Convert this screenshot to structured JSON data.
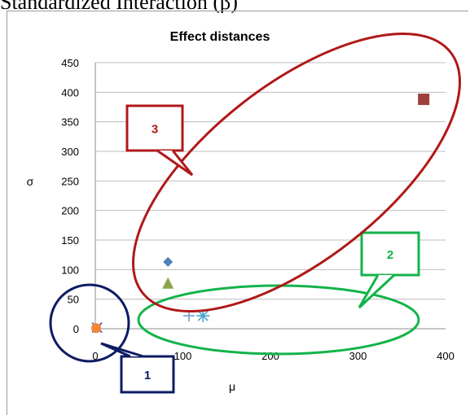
{
  "header_text": "Standardized Interaction (β)",
  "chart_data": {
    "type": "scatter",
    "title": "Effect distances",
    "xlabel": "μ",
    "ylabel": "σ",
    "xlim": [
      0,
      400
    ],
    "ylim": [
      0,
      450
    ],
    "x_ticks": [
      "0",
      "100",
      "200",
      "300",
      "400"
    ],
    "y_ticks": [
      "0",
      "50",
      "100",
      "150",
      "200",
      "250",
      "300",
      "350",
      "400",
      "450"
    ],
    "grid": true,
    "series": [
      {
        "marker": "diamond",
        "color": "#4f81bd",
        "points": [
          [
            83,
            113
          ]
        ]
      },
      {
        "marker": "square",
        "color": "#a0403c",
        "points": [
          [
            375,
            388
          ]
        ]
      },
      {
        "marker": "triangle",
        "color": "#8aa64a",
        "points": [
          [
            83,
            76
          ]
        ]
      },
      {
        "marker": "x",
        "color": "#7b5fa0",
        "points": [
          [
            2,
            2
          ]
        ]
      },
      {
        "marker": "star",
        "color": "#4aa3c8",
        "points": [
          [
            123,
            22
          ]
        ]
      },
      {
        "marker": "circle",
        "color": "#f0863a",
        "points": [
          [
            1,
            1
          ]
        ]
      },
      {
        "marker": "plus",
        "color": "#6f9bd1",
        "points": [
          [
            107,
            22
          ]
        ]
      }
    ],
    "annotations": [
      {
        "label": "1",
        "color": "#0d1b63",
        "shape": "ellipse"
      },
      {
        "label": "2",
        "color": "#13b34a",
        "shape": "ellipse"
      },
      {
        "label": "3",
        "color": "#b01818",
        "shape": "ellipse"
      }
    ]
  }
}
